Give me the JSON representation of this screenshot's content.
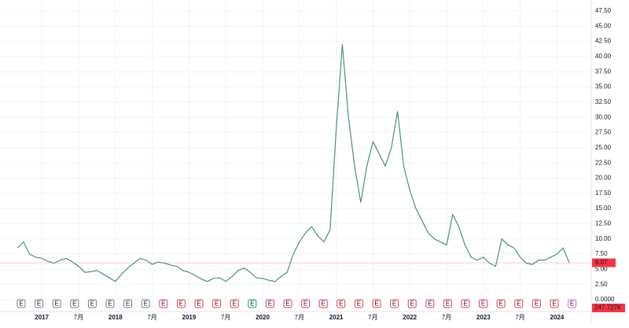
{
  "chart_data": {
    "type": "line",
    "categories": [
      null,
      null,
      null,
      null,
      "2017",
      null,
      null,
      null,
      null,
      null,
      "7月",
      null,
      null,
      null,
      null,
      null,
      "2018",
      null,
      null,
      null,
      null,
      null,
      "7月",
      null,
      null,
      null,
      null,
      null,
      "2019",
      null,
      null,
      null,
      null,
      null,
      "7月",
      null,
      null,
      null,
      null,
      null,
      "2020",
      null,
      null,
      null,
      null,
      null,
      "7月",
      null,
      null,
      null,
      null,
      null,
      "2021",
      null,
      null,
      null,
      null,
      null,
      "7月",
      null,
      null,
      null,
      null,
      null,
      "2022",
      null,
      null,
      null,
      null,
      null,
      "7月",
      null,
      null,
      null,
      null,
      null,
      "2023",
      null,
      null,
      null,
      null,
      null,
      "7月",
      null,
      null,
      null,
      null,
      null,
      "2024",
      null,
      null
    ],
    "series": [
      {
        "color": "#4e8f7a",
        "values": [
          8.5,
          9.5,
          7.5,
          7.0,
          6.8,
          6.3,
          6.0,
          6.5,
          6.8,
          6.2,
          5.5,
          4.5,
          4.6,
          4.8,
          4.2,
          3.6,
          3.0,
          4.2,
          5.2,
          6.0,
          6.8,
          6.5,
          5.8,
          6.2,
          6.0,
          5.7,
          5.5,
          4.8,
          4.5,
          4.0,
          3.4,
          3.0,
          3.5,
          3.6,
          3.0,
          3.8,
          4.8,
          5.2,
          4.5,
          3.6,
          3.5,
          3.2,
          3.0,
          3.8,
          4.5,
          7.5,
          9.5,
          11.0,
          12.0,
          10.5,
          9.5,
          11.5,
          28.0,
          42.0,
          30.0,
          22.0,
          16.0,
          22.0,
          26.0,
          24.0,
          22.0,
          25.0,
          31.0,
          22.0,
          18.0,
          15.0,
          13.0,
          11.0,
          10.0,
          9.5,
          9.0,
          14.0,
          12.0,
          9.0,
          7.0,
          6.5,
          7.0,
          6.0,
          5.5,
          10.0,
          9.0,
          8.5,
          7.0,
          6.0,
          5.8,
          6.5,
          6.5,
          7.0,
          7.5,
          8.5,
          6.07
        ]
      }
    ],
    "ylim": [
      0,
      47.5
    ],
    "yticks": [
      {
        "value": 0,
        "label": "0.0000"
      },
      {
        "value": 2.5,
        "label": "2.50"
      },
      {
        "value": 5,
        "label": "5.00"
      },
      {
        "value": 7.5,
        "label": "7.50"
      },
      {
        "value": 10,
        "label": "10.00"
      },
      {
        "value": 12.5,
        "label": "12.50"
      },
      {
        "value": 15,
        "label": "15.00"
      },
      {
        "value": 17.5,
        "label": "17.50"
      },
      {
        "value": 20,
        "label": "20.00"
      },
      {
        "value": 22.5,
        "label": "22.50"
      },
      {
        "value": 25,
        "label": "25.00"
      },
      {
        "value": 27.5,
        "label": "27.50"
      },
      {
        "value": 30,
        "label": "30.00"
      },
      {
        "value": 32.5,
        "label": "32.50"
      },
      {
        "value": 35,
        "label": "35.00"
      },
      {
        "value": 37.5,
        "label": "37.50"
      },
      {
        "value": 40,
        "label": "40.00"
      },
      {
        "value": 42.5,
        "label": "42.50"
      },
      {
        "value": 45,
        "label": "45.00"
      },
      {
        "value": 47.5,
        "label": "47.50"
      }
    ],
    "grid": true,
    "last_price": 6.07,
    "last_price_color": "#f23645",
    "volume_label": "247.727K",
    "earnings": [
      {
        "label": "E",
        "color": "#787b86"
      },
      {
        "label": "E",
        "color": "#787b86"
      },
      {
        "label": "E",
        "color": "#787b86"
      },
      {
        "label": "E",
        "color": "#787b86"
      },
      {
        "label": "E",
        "color": "#787b86"
      },
      {
        "label": "E",
        "color": "#787b86"
      },
      {
        "label": "E",
        "color": "#787b86"
      },
      {
        "label": "E",
        "color": "#787b86"
      },
      {
        "label": "E",
        "color": "#f23645"
      },
      {
        "label": "E",
        "color": "#f23645"
      },
      {
        "label": "E",
        "color": "#f23645"
      },
      {
        "label": "E",
        "color": "#f23645"
      },
      {
        "label": "E",
        "color": "#f23645"
      },
      {
        "label": "E",
        "color": "#089981"
      },
      {
        "label": "E",
        "color": "#f23645"
      },
      {
        "label": "E",
        "color": "#f23645"
      },
      {
        "label": "E",
        "color": "#f23645"
      },
      {
        "label": "E",
        "color": "#f23645"
      },
      {
        "label": "E",
        "color": "#f23645"
      },
      {
        "label": "E",
        "color": "#f23645"
      },
      {
        "label": "E",
        "color": "#f23645"
      },
      {
        "label": "E",
        "color": "#f23645"
      },
      {
        "label": "E",
        "color": "#f23645"
      },
      {
        "label": "E",
        "color": "#f23645"
      },
      {
        "label": "E",
        "color": "#f23645"
      },
      {
        "label": "E",
        "color": "#f23645"
      },
      {
        "label": "E",
        "color": "#f23645"
      },
      {
        "label": "E",
        "color": "#f23645"
      },
      {
        "label": "E",
        "color": "#f23645"
      },
      {
        "label": "E",
        "color": "#f23645"
      },
      {
        "label": "E",
        "color": "#f23645"
      },
      {
        "label": "E",
        "color": "#d05ce3"
      }
    ]
  }
}
